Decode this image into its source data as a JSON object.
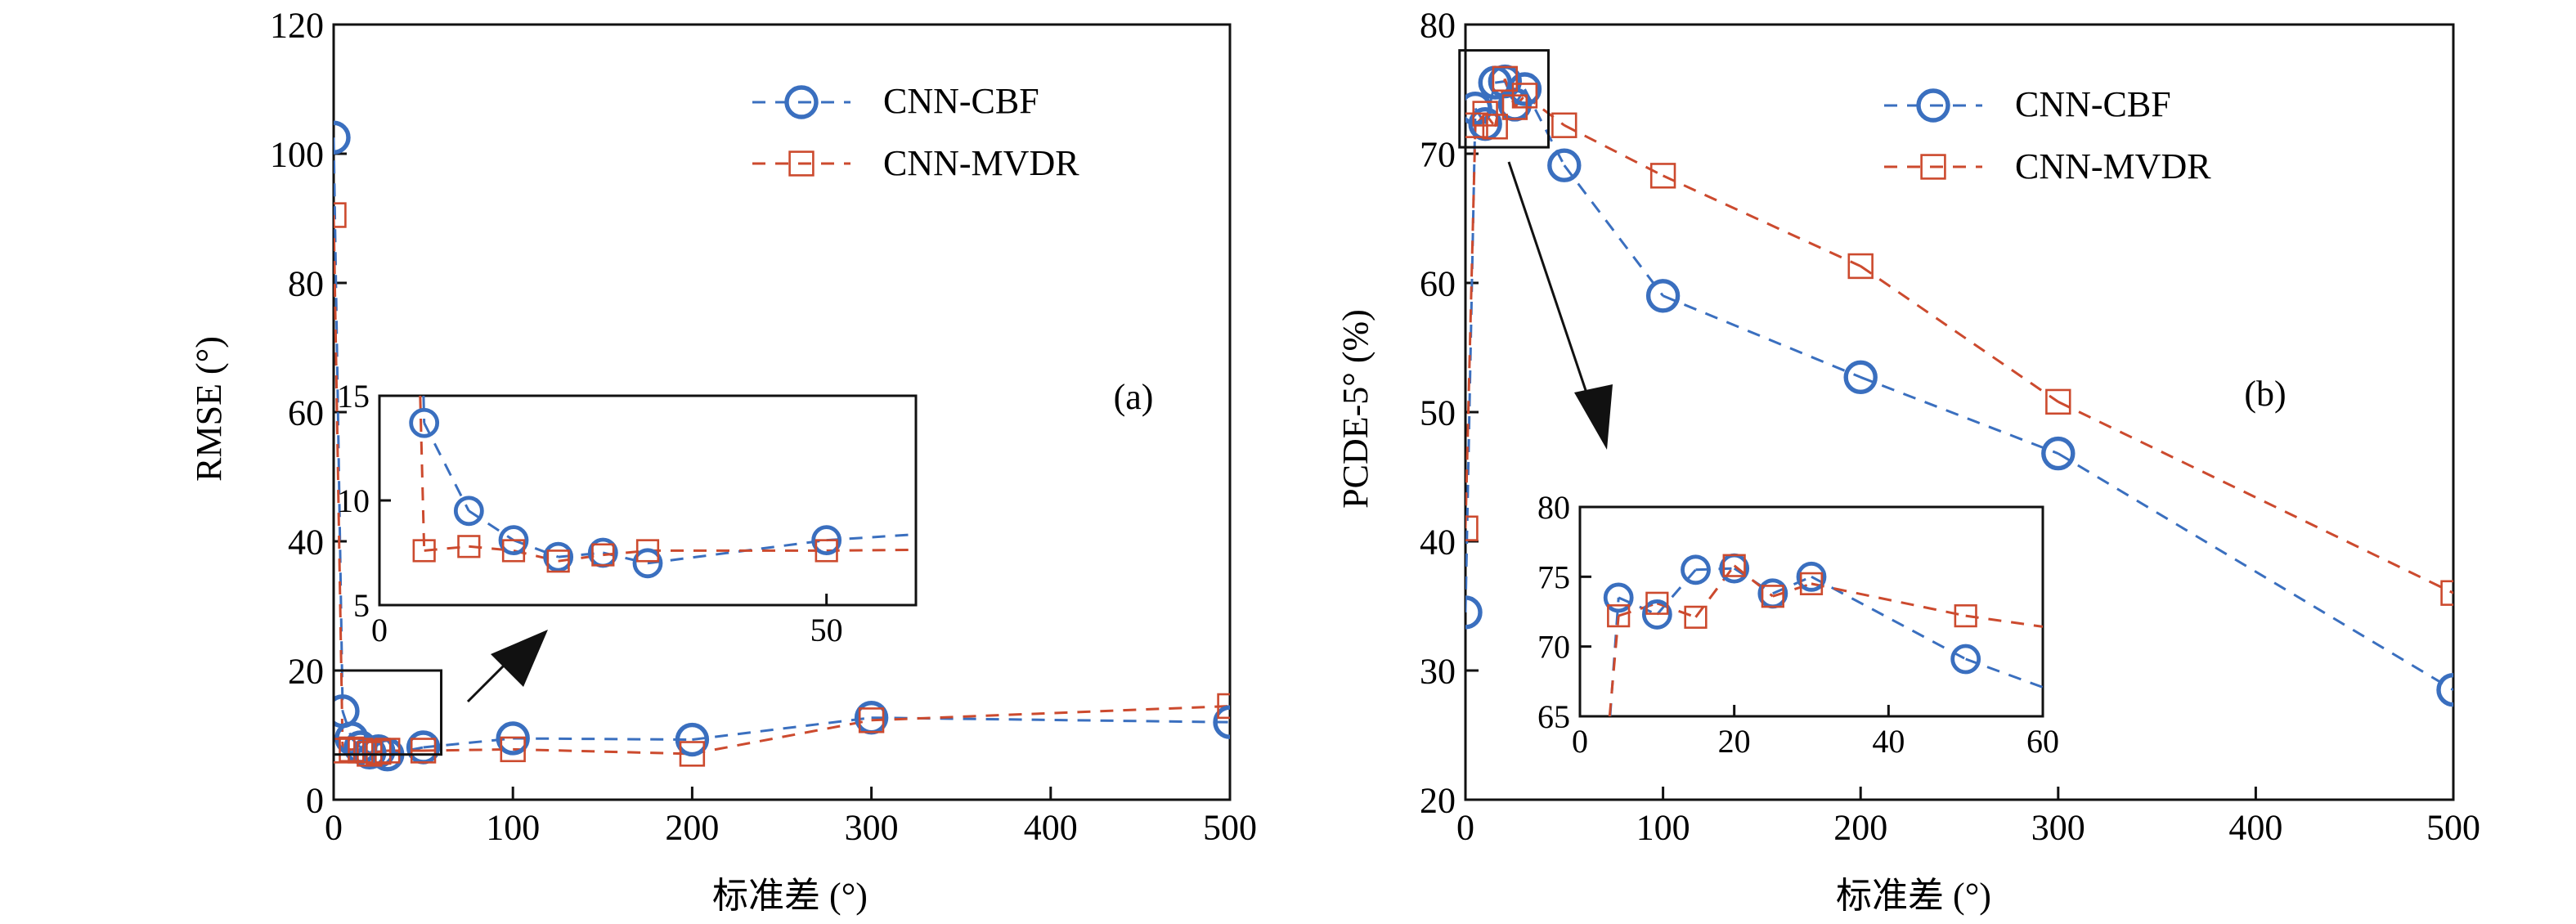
{
  "colors": {
    "CNN-CBF": "#3a6fbf",
    "CNN-MVDR": "#cc4a2e"
  },
  "chart_data": [
    {
      "type": "line",
      "panel_label": "(a)",
      "xlabel": "标准差 (°)",
      "ylabel": "RMSE (°)",
      "xlim": [
        0,
        500
      ],
      "ylim": [
        0,
        120
      ],
      "xticks": [
        0,
        100,
        200,
        300,
        400,
        500
      ],
      "yticks": [
        0,
        20,
        40,
        60,
        80,
        100,
        120
      ],
      "legend": "top-right",
      "grid": false,
      "x": [
        0,
        5,
        10,
        15,
        20,
        25,
        30,
        50,
        100,
        200,
        300,
        500
      ],
      "series": [
        {
          "name": "CNN-CBF",
          "marker": "circle",
          "values": [
            102.5,
            13.7,
            9.5,
            8.1,
            7.3,
            7.5,
            7.0,
            8.1,
            9.5,
            9.3,
            12.7,
            12.0
          ]
        },
        {
          "name": "CNN-MVDR",
          "marker": "square",
          "values": [
            90.5,
            7.6,
            7.8,
            7.6,
            7.1,
            7.4,
            7.6,
            7.6,
            7.8,
            7.1,
            12.3,
            14.5
          ]
        }
      ],
      "zoom_region": {
        "xlim": [
          0,
          60
        ],
        "ylim": [
          7,
          20
        ]
      },
      "inset": {
        "xlim": [
          0,
          60
        ],
        "ylim": [
          5,
          15
        ],
        "xticks": [
          0,
          50
        ],
        "yticks": [
          5,
          10,
          15
        ]
      }
    },
    {
      "type": "line",
      "panel_label": "(b)",
      "xlabel": "标准差 (°)",
      "ylabel": "PCDE-5° (%)",
      "xlim": [
        0,
        500
      ],
      "ylim": [
        20,
        80
      ],
      "xticks": [
        0,
        100,
        200,
        300,
        400,
        500
      ],
      "yticks": [
        20,
        30,
        40,
        50,
        60,
        70,
        80
      ],
      "legend": "top-right",
      "grid": false,
      "x": [
        0,
        5,
        10,
        15,
        20,
        25,
        30,
        50,
        100,
        200,
        300,
        500
      ],
      "series": [
        {
          "name": "CNN-CBF",
          "marker": "circle",
          "values": [
            34.5,
            73.5,
            72.3,
            75.5,
            75.6,
            73.8,
            75.0,
            69.1,
            59.0,
            52.7,
            46.8,
            28.5
          ]
        },
        {
          "name": "CNN-MVDR",
          "marker": "square",
          "values": [
            41.0,
            72.2,
            73.1,
            72.1,
            75.8,
            73.6,
            74.5,
            72.2,
            68.3,
            61.3,
            50.8,
            36.0
          ]
        }
      ],
      "zoom_region": {
        "xlim": [
          -3,
          42
        ],
        "ylim": [
          70.5,
          78
        ]
      },
      "inset": {
        "xlim": [
          0,
          60
        ],
        "ylim": [
          65,
          80
        ],
        "xticks": [
          0,
          20,
          40,
          60
        ],
        "yticks": [
          65,
          70,
          75,
          80
        ]
      }
    }
  ]
}
